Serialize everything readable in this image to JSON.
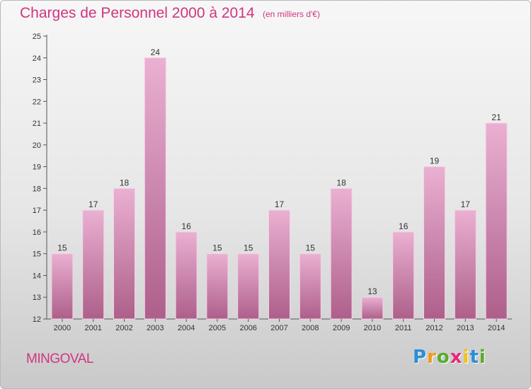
{
  "title": "Charges de Personnel 2000 à 2014",
  "subtitle": "(en milliers d'€)",
  "commune": "MINGOVAL",
  "logo": {
    "text": "Proxiti",
    "letters": [
      {
        "ch": "P",
        "color": "#2a8fd6"
      },
      {
        "ch": "r",
        "color": "#f09a1a"
      },
      {
        "ch": "o",
        "color": "#5aab2e"
      },
      {
        "ch": "x",
        "color": "#e5287a"
      },
      {
        "ch": "i",
        "color": "#f0c21a"
      },
      {
        "ch": "t",
        "color": "#2a8fd6"
      },
      {
        "ch": "i",
        "color": "#5aab2e"
      }
    ]
  },
  "colors": {
    "accent": "#d0357f",
    "bar_top": "#eab0d2",
    "bar_bottom": "#ad5f8a"
  },
  "chart_data": {
    "type": "bar",
    "categories": [
      "2000",
      "2001",
      "2002",
      "2003",
      "2004",
      "2005",
      "2006",
      "2007",
      "2008",
      "2009",
      "2010",
      "2011",
      "2012",
      "2013",
      "2014"
    ],
    "values": [
      15,
      17,
      18,
      24,
      16,
      15,
      15,
      17,
      15,
      18,
      13,
      16,
      19,
      17,
      21
    ],
    "ylim": [
      12,
      25
    ],
    "yticks": [
      12,
      13,
      14,
      15,
      16,
      17,
      18,
      19,
      20,
      21,
      22,
      23,
      24,
      25
    ],
    "grid": false,
    "data_labels": true
  }
}
